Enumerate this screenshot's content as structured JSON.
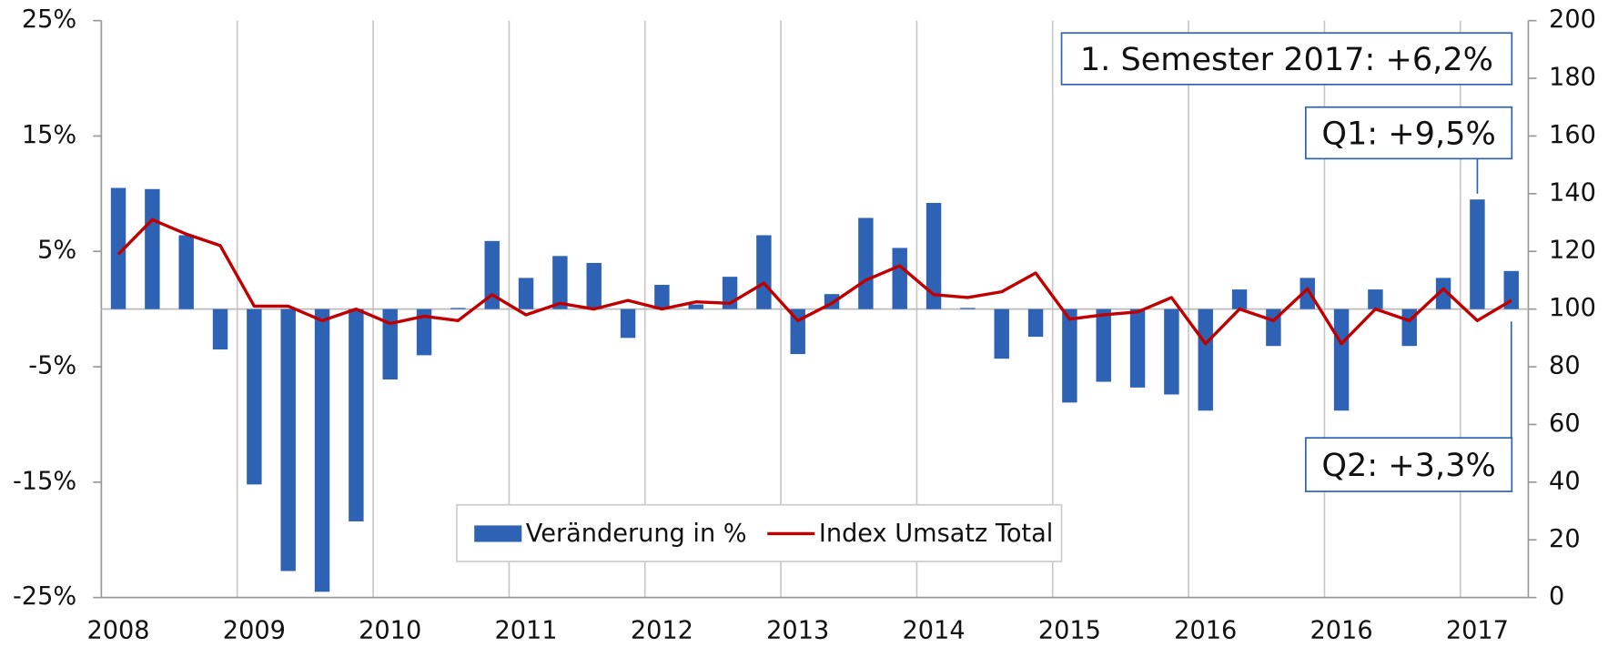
{
  "chart_data": {
    "type": "bar-line",
    "categories": [
      "2008",
      null,
      null,
      null,
      "2009",
      null,
      null,
      null,
      "2010",
      null,
      null,
      null,
      "2011",
      null,
      null,
      null,
      "2012",
      null,
      null,
      null,
      "2013",
      null,
      null,
      null,
      "2014",
      null,
      null,
      null,
      "2015",
      null,
      null,
      null,
      "2016",
      null,
      null,
      null,
      "2016",
      null,
      null,
      null,
      "2017",
      null
    ],
    "series": [
      {
        "name": "Veränderung in %",
        "type": "bar",
        "axis": "y",
        "color": "#2e62b5",
        "values": [
          10.5,
          10.4,
          6.4,
          -3.5,
          -15.2,
          -22.7,
          -24.5,
          -18.4,
          -6.1,
          -4.0,
          0.1,
          5.9,
          2.7,
          4.6,
          4.0,
          -2.5,
          2.1,
          0.4,
          2.8,
          6.4,
          -3.9,
          1.3,
          7.9,
          5.3,
          9.2,
          0.1,
          -4.3,
          -2.4,
          -8.1,
          -6.3,
          -6.8,
          -7.4,
          -8.8,
          1.7,
          -3.2,
          2.7,
          -8.8,
          1.7,
          -3.2,
          2.7,
          9.5,
          3.3
        ]
      },
      {
        "name": "Index Umsatz Total",
        "type": "line",
        "axis": "y2",
        "color": "#c00000",
        "values": [
          119,
          131,
          126,
          122,
          101,
          101,
          96,
          100,
          95,
          97.5,
          96,
          105,
          98,
          102,
          100,
          103,
          100,
          102.5,
          102,
          109,
          96,
          102,
          110,
          115,
          105,
          104,
          106,
          112.5,
          96.5,
          98,
          99,
          104,
          88,
          100,
          96,
          107,
          88,
          100,
          96,
          107,
          96,
          103
        ]
      }
    ],
    "ylim": [
      -25,
      25
    ],
    "yticks": [
      {
        "value": 25,
        "label": "25%"
      },
      {
        "value": 15,
        "label": "15%"
      },
      {
        "value": 5,
        "label": "5%"
      },
      {
        "value": -5,
        "label": "-5%"
      },
      {
        "value": -15,
        "label": "-15%"
      },
      {
        "value": -25,
        "label": "-25%"
      }
    ],
    "y2lim": [
      0,
      200
    ],
    "y2ticks": [
      0,
      20,
      40,
      60,
      80,
      100,
      120,
      140,
      160,
      180,
      200
    ],
    "annotations": [
      "1. Semester 2017: +6,2%",
      "Q1: +9,5%",
      "Q2: +3,3%"
    ],
    "legend": "bottom-center"
  }
}
